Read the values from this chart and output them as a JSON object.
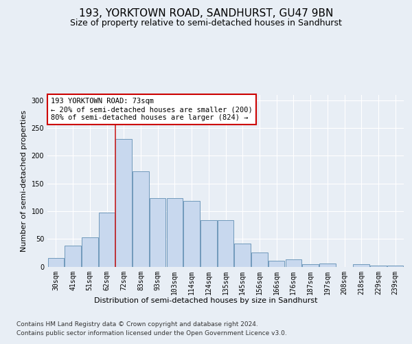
{
  "title1": "193, YORKTOWN ROAD, SANDHURST, GU47 9BN",
  "title2": "Size of property relative to semi-detached houses in Sandhurst",
  "xlabel": "Distribution of semi-detached houses by size in Sandhurst",
  "ylabel": "Number of semi-detached properties",
  "categories": [
    "30sqm",
    "41sqm",
    "51sqm",
    "62sqm",
    "72sqm",
    "83sqm",
    "93sqm",
    "103sqm",
    "114sqm",
    "124sqm",
    "135sqm",
    "145sqm",
    "156sqm",
    "166sqm",
    "176sqm",
    "187sqm",
    "197sqm",
    "208sqm",
    "218sqm",
    "229sqm",
    "239sqm"
  ],
  "values": [
    15,
    38,
    53,
    97,
    230,
    172,
    124,
    124,
    119,
    84,
    84,
    42,
    25,
    11,
    13,
    4,
    5,
    0,
    4,
    2,
    2
  ],
  "bar_color": "#c8d8ee",
  "bar_edge_color": "#7099bb",
  "vline_color": "#cc2222",
  "vline_x_idx": 4,
  "annotation_text": "193 YORKTOWN ROAD: 73sqm\n← 20% of semi-detached houses are smaller (200)\n80% of semi-detached houses are larger (824) →",
  "annotation_box_facecolor": "#ffffff",
  "annotation_box_edgecolor": "#cc0000",
  "ylim": [
    0,
    310
  ],
  "yticks": [
    0,
    50,
    100,
    150,
    200,
    250,
    300
  ],
  "footer1": "Contains HM Land Registry data © Crown copyright and database right 2024.",
  "footer2": "Contains public sector information licensed under the Open Government Licence v3.0.",
  "background_color": "#e8eef5",
  "plot_background": "#e8eef5",
  "grid_color": "#ffffff",
  "title1_fontsize": 11,
  "title2_fontsize": 9,
  "xlabel_fontsize": 8,
  "ylabel_fontsize": 8,
  "tick_fontsize": 7,
  "footer_fontsize": 6.5
}
